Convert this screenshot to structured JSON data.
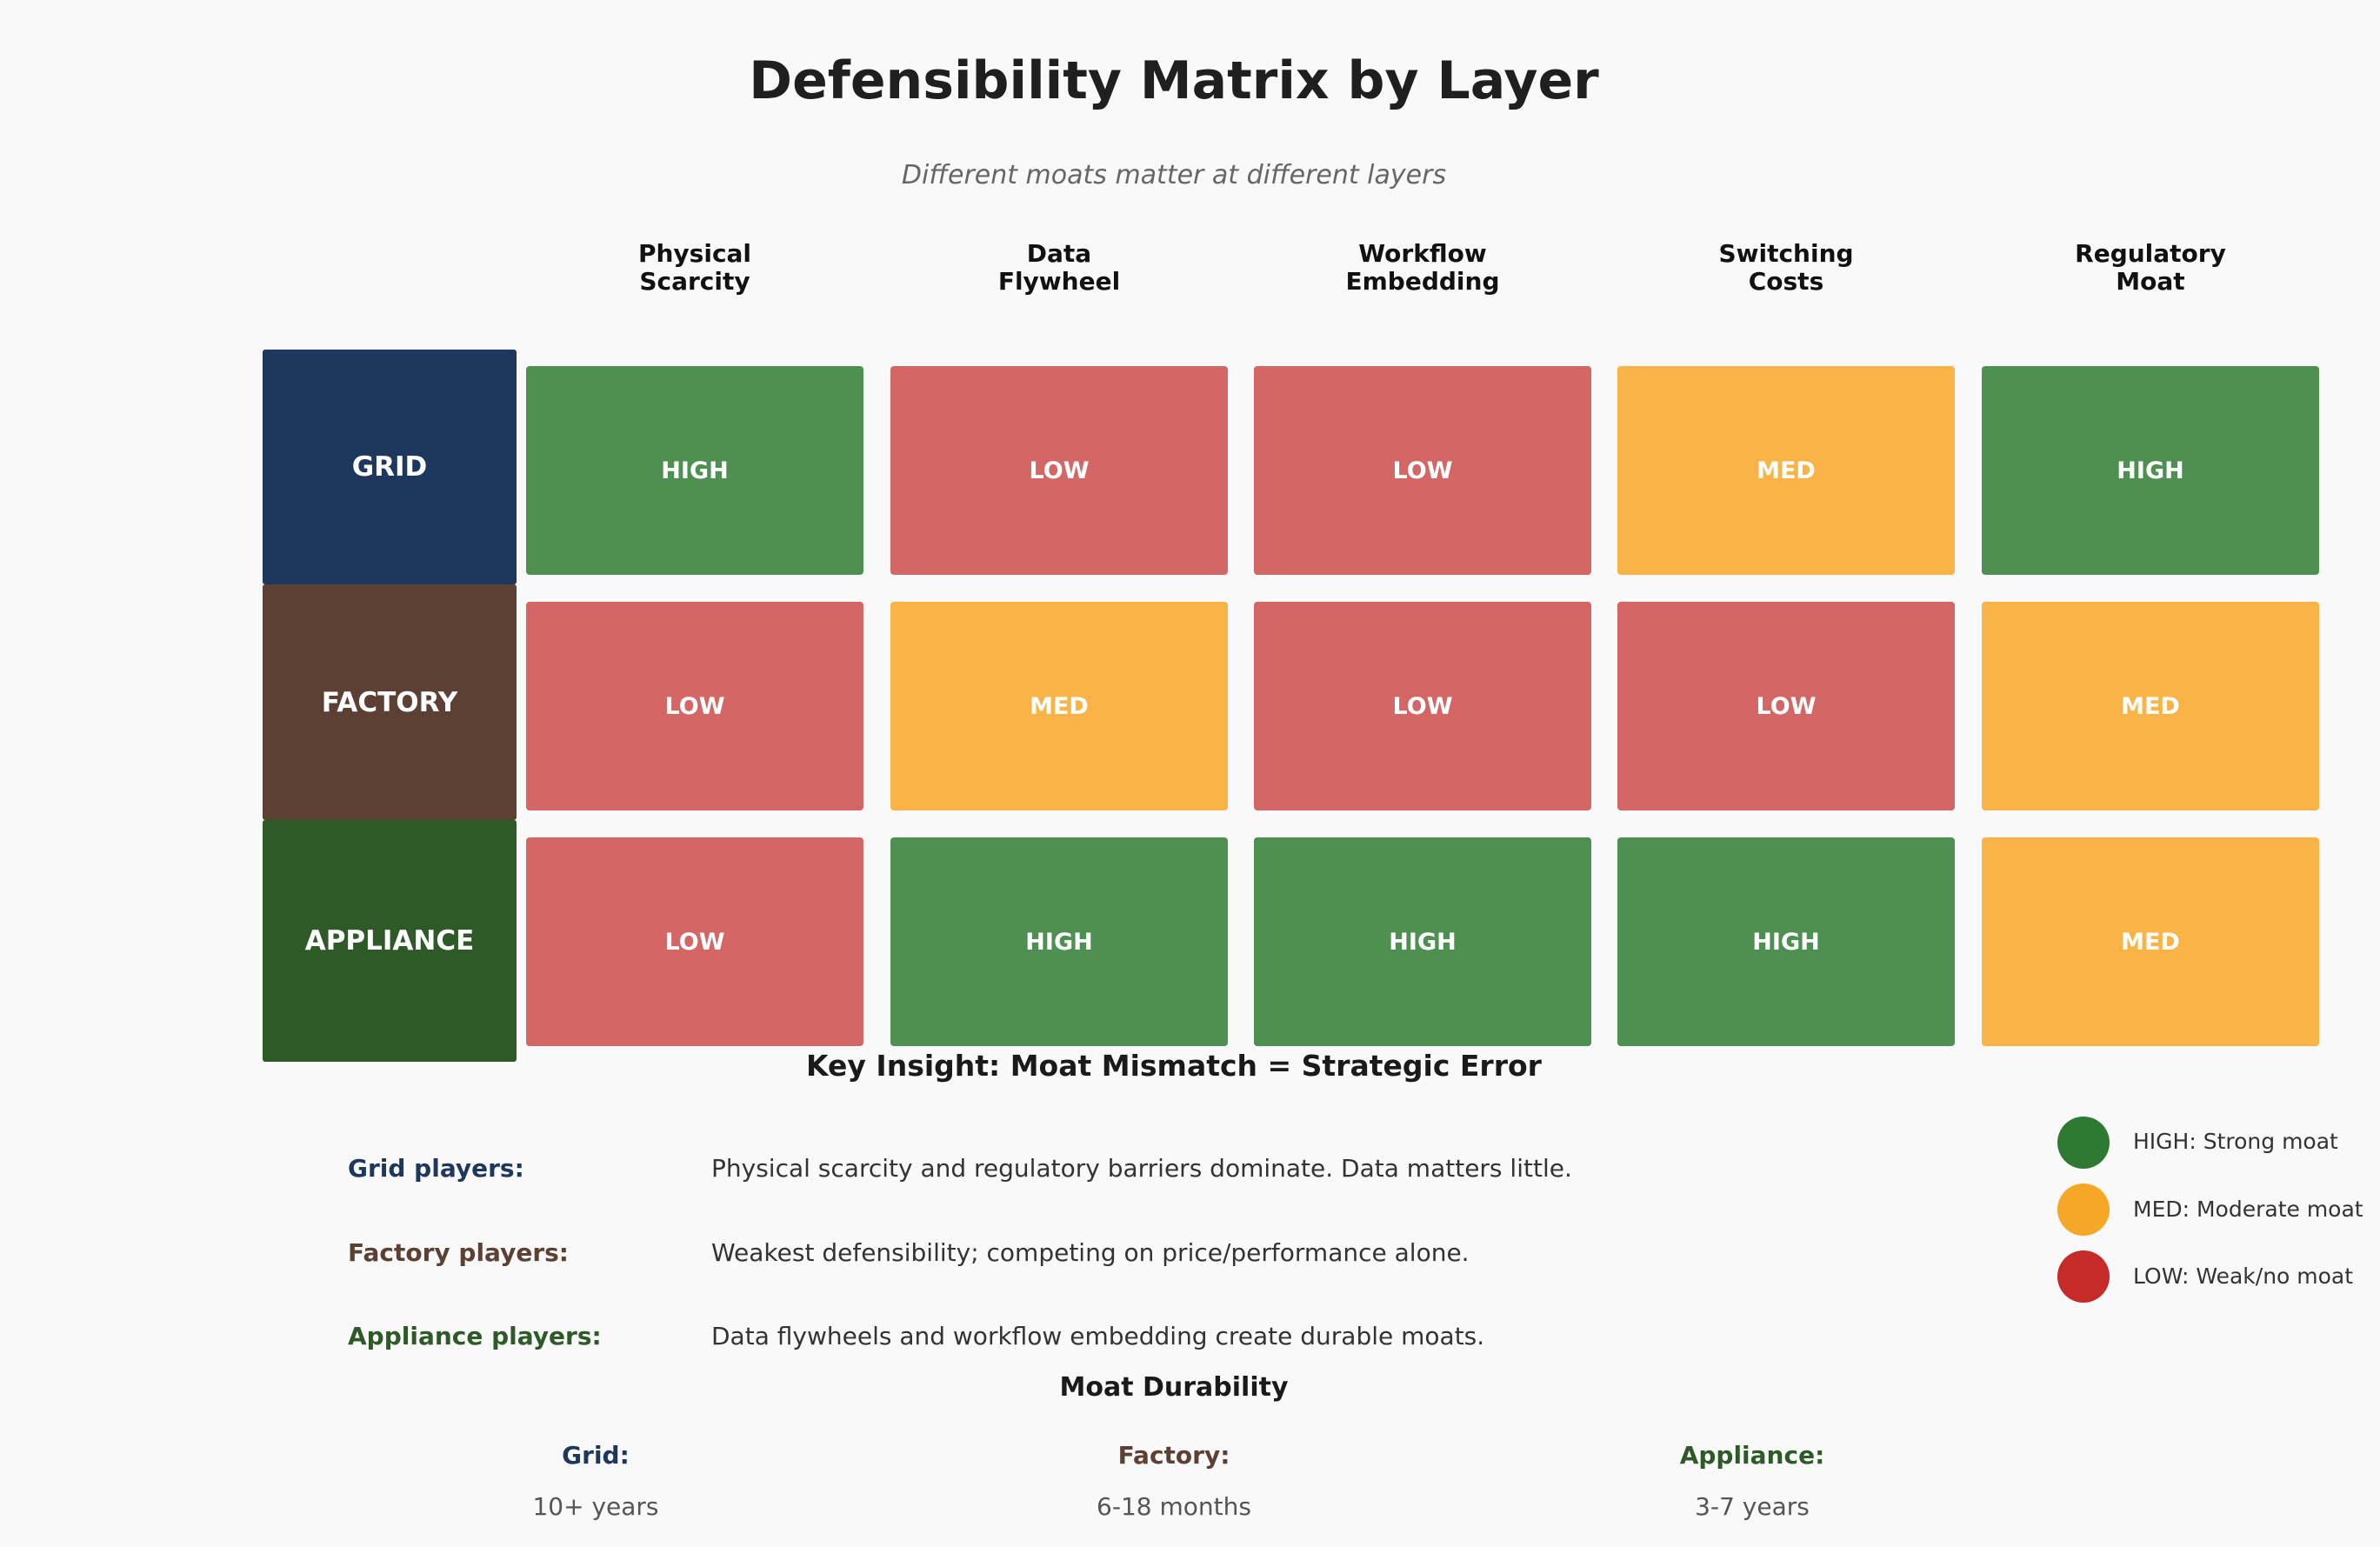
{
  "title": "Defensibility Matrix by Layer",
  "subtitle": "Different moats matter at different layers",
  "colors": {
    "HIGH": "#4e9052",
    "MED": "#f9b347",
    "LOW": "#d46665",
    "GRID": "#1e385d",
    "FACTORY": "#5c4034",
    "APPLIANCE": "#2e5a28"
  },
  "chart_data": {
    "type": "heatmap",
    "columns": [
      [
        "Physical",
        "Scarcity"
      ],
      [
        "Data",
        "Flywheel"
      ],
      [
        "Workflow",
        "Embedding"
      ],
      [
        "Switching",
        "Costs"
      ],
      [
        "Regulatory",
        "Moat"
      ]
    ],
    "rows": [
      "GRID",
      "FACTORY",
      "APPLIANCE"
    ],
    "values": [
      [
        "HIGH",
        "LOW",
        "LOW",
        "MED",
        "HIGH"
      ],
      [
        "LOW",
        "MED",
        "LOW",
        "LOW",
        "MED"
      ],
      [
        "LOW",
        "HIGH",
        "HIGH",
        "HIGH",
        "MED"
      ]
    ]
  },
  "legend": [
    {
      "label": "HIGH: Strong moat",
      "color": "#2f7a33"
    },
    {
      "label": "MED: Moderate moat",
      "color": "#f5a828"
    },
    {
      "label": "LOW: Weak/no moat",
      "color": "#c62b29"
    }
  ],
  "insight": {
    "title": "Key Insight: Moat Mismatch = Strategic Error",
    "items": [
      {
        "label": "Grid players:",
        "text": "Physical scarcity and regulatory barriers dominate. Data matters little.",
        "color": "#1e385d"
      },
      {
        "label": "Factory players:",
        "text": "Weakest defensibility; competing on price/performance alone.",
        "color": "#5c4034"
      },
      {
        "label": "Appliance players:",
        "text": "Data flywheels and workflow embedding create durable moats.",
        "color": "#2e5a28"
      }
    ]
  },
  "durability": {
    "title": "Moat Durability",
    "items": [
      {
        "label": "Grid:",
        "value": "10+ years",
        "color": "#1e385d"
      },
      {
        "label": "Factory:",
        "value": "6-18 months",
        "color": "#5c4034"
      },
      {
        "label": "Appliance:",
        "value": "3-7 years",
        "color": "#2e5a28"
      }
    ]
  }
}
